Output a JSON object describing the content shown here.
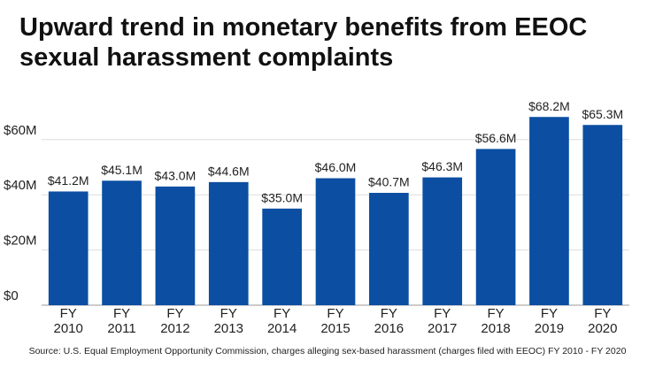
{
  "chart_data": {
    "type": "bar",
    "title": "Upward trend in monetary benefits from EEOC sexual harassment complaints",
    "source": "Source: U.S. Equal Employment Opportunity Commission, charges alleging sex-based harassment (charges filed with EEOC) FY 2010 - FY 2020",
    "categories": [
      "FY 2010",
      "FY 2011",
      "FY 2012",
      "FY 2013",
      "FY 2014",
      "FY 2015",
      "FY 2016",
      "FY 2017",
      "FY 2018",
      "FY 2019",
      "FY 2020"
    ],
    "values": [
      41.2,
      45.1,
      43.0,
      44.6,
      35.0,
      46.0,
      40.7,
      46.3,
      56.6,
      68.2,
      65.3
    ],
    "value_labels": [
      "$41.2M",
      "$45.1M",
      "$43.0M",
      "$44.6M",
      "$35.0M",
      "$46.0M",
      "$40.7M",
      "$46.3M",
      "$56.6M",
      "$68.2M",
      "$65.3M"
    ],
    "color": "#0b4ea2",
    "ylim": [
      0,
      75
    ],
    "yticks": [
      {
        "value": 0,
        "label": "$0"
      },
      {
        "value": 20,
        "label": "$20M"
      },
      {
        "value": 40,
        "label": "$40M"
      },
      {
        "value": 60,
        "label": "$60M"
      }
    ],
    "grid": true
  }
}
